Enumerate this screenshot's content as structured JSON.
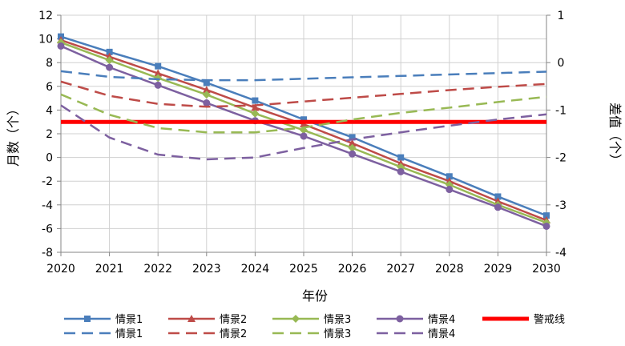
{
  "chart_data": {
    "type": "line",
    "xlabel": "年份",
    "ylabel_left": "月数（个）",
    "ylabel_right": "差值（个）",
    "x": [
      2020,
      2021,
      2022,
      2023,
      2024,
      2025,
      2026,
      2027,
      2028,
      2029,
      2030
    ],
    "ylim_left": [
      -8,
      12
    ],
    "yticks_left": [
      -8,
      -6,
      -4,
      -2,
      0,
      2,
      4,
      6,
      8,
      10,
      12
    ],
    "ylim_right": [
      -4,
      1
    ],
    "yticks_right": [
      -4,
      -3,
      -2,
      -1,
      0,
      1
    ],
    "grid": true,
    "legend_position": "bottom",
    "series": [
      {
        "name": "情景1",
        "axis": "left",
        "style": "solid",
        "marker": "square",
        "color": "#4a7ebb",
        "values": [
          10.2,
          8.9,
          7.7,
          6.3,
          4.8,
          3.2,
          1.7,
          0.0,
          -1.6,
          -3.3,
          -4.9
        ]
      },
      {
        "name": "情景2",
        "axis": "left",
        "style": "solid",
        "marker": "triangle",
        "color": "#be4b48",
        "values": [
          9.9,
          8.5,
          7.1,
          5.7,
          4.2,
          2.8,
          1.2,
          -0.5,
          -2.0,
          -3.7,
          -5.3
        ]
      },
      {
        "name": "情景3",
        "axis": "left",
        "style": "solid",
        "marker": "diamond",
        "color": "#98b954",
        "values": [
          9.7,
          8.2,
          6.7,
          5.3,
          3.7,
          2.3,
          0.8,
          -0.8,
          -2.3,
          -4.0,
          -5.5
        ]
      },
      {
        "name": "情景4",
        "axis": "left",
        "style": "solid",
        "marker": "circle",
        "color": "#7d60a0",
        "values": [
          9.4,
          7.6,
          6.1,
          4.6,
          3.1,
          1.8,
          0.3,
          -1.2,
          -2.7,
          -4.2,
          -5.8
        ]
      },
      {
        "name": "警戒线",
        "axis": "left",
        "style": "thick",
        "marker": "none",
        "color": "#ff0000",
        "values": [
          3,
          3,
          3,
          3,
          3,
          3,
          3,
          3,
          3,
          3,
          3
        ]
      },
      {
        "name": "情景1",
        "axis": "right",
        "style": "dashed",
        "marker": "none",
        "color": "#4a7ebb",
        "values": [
          -0.18,
          -0.3,
          -0.35,
          -0.37,
          -0.37,
          -0.34,
          -0.31,
          -0.28,
          -0.25,
          -0.22,
          -0.19
        ]
      },
      {
        "name": "情景2",
        "axis": "right",
        "style": "dashed",
        "marker": "none",
        "color": "#be4b48",
        "values": [
          -0.4,
          -0.7,
          -0.87,
          -0.93,
          -0.9,
          -0.82,
          -0.74,
          -0.66,
          -0.58,
          -0.51,
          -0.45
        ]
      },
      {
        "name": "情景3",
        "axis": "right",
        "style": "dashed",
        "marker": "none",
        "color": "#98b954",
        "values": [
          -0.67,
          -1.1,
          -1.38,
          -1.47,
          -1.47,
          -1.37,
          -1.2,
          -1.06,
          -0.95,
          -0.83,
          -0.72
        ]
      },
      {
        "name": "情景4",
        "axis": "right",
        "style": "dashed",
        "marker": "none",
        "color": "#7d60a0",
        "values": [
          -0.9,
          -1.58,
          -1.94,
          -2.04,
          -2.0,
          -1.8,
          -1.62,
          -1.47,
          -1.33,
          -1.2,
          -1.09
        ]
      }
    ]
  }
}
